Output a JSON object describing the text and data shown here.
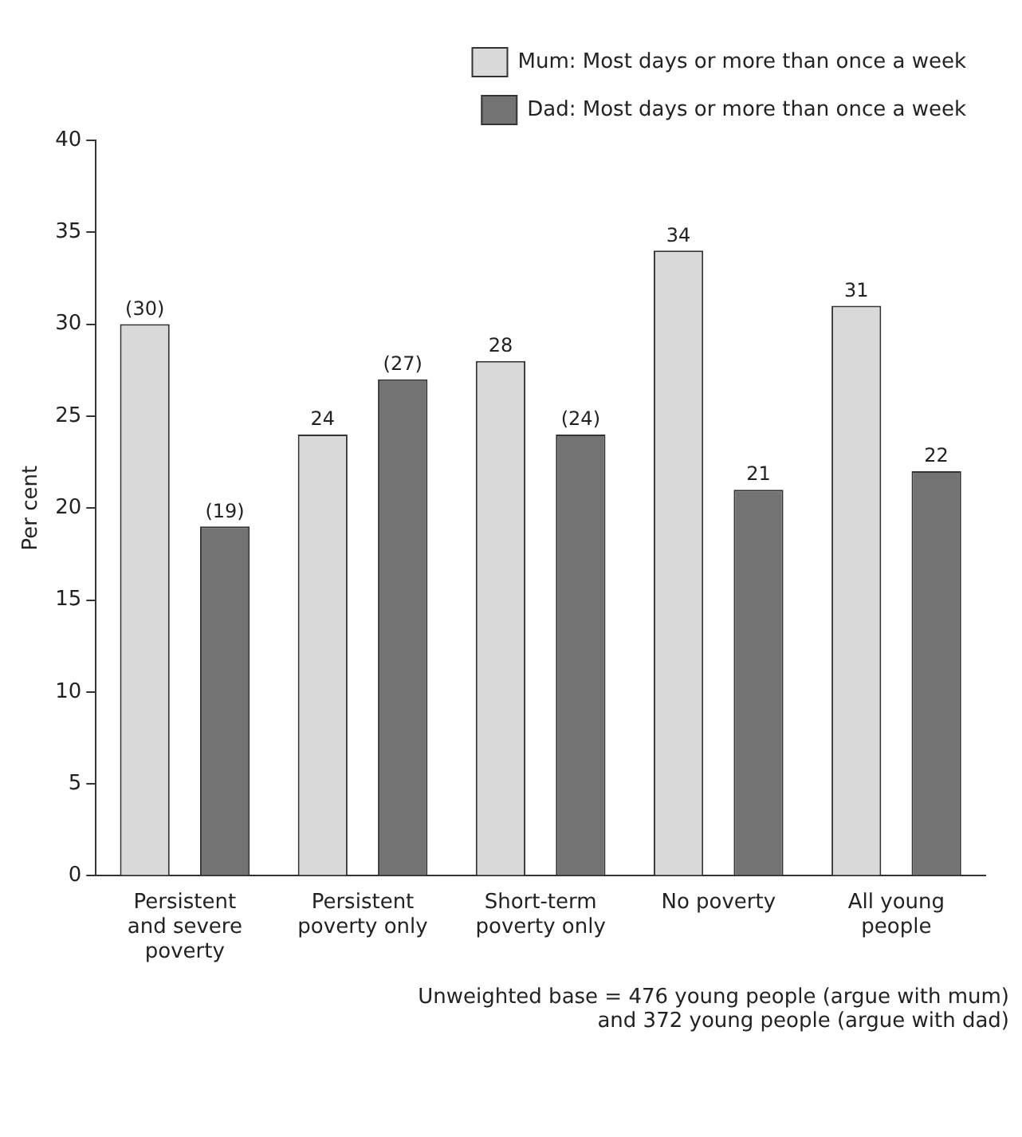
{
  "chart_data": {
    "type": "bar",
    "ylabel": "Per cent",
    "categories": [
      "Persistent and severe poverty",
      "Persistent poverty only",
      "Short-term poverty only",
      "No poverty",
      "All young people"
    ],
    "series": [
      {
        "name": "Mum: Most days or more than once a week",
        "color": "#d9d9d9",
        "values": [
          30,
          24,
          28,
          34,
          31
        ],
        "value_labels": [
          "(30)",
          "24",
          "28",
          "34",
          "31"
        ]
      },
      {
        "name": "Dad: Most days or more than once a week",
        "color": "#737373",
        "values": [
          19,
          27,
          24,
          21,
          22
        ],
        "value_labels": [
          "(19)",
          "(27)",
          "(24)",
          "21",
          "22"
        ]
      }
    ],
    "ylim": [
      0,
      40
    ],
    "yticks": [
      0,
      5,
      10,
      15,
      20,
      25,
      30,
      35,
      40
    ],
    "grid": false,
    "legend": "top right",
    "annotations": [
      "Unweighted base = 476 young people (argue with mum) and 372 young people (argue with dad)"
    ]
  }
}
